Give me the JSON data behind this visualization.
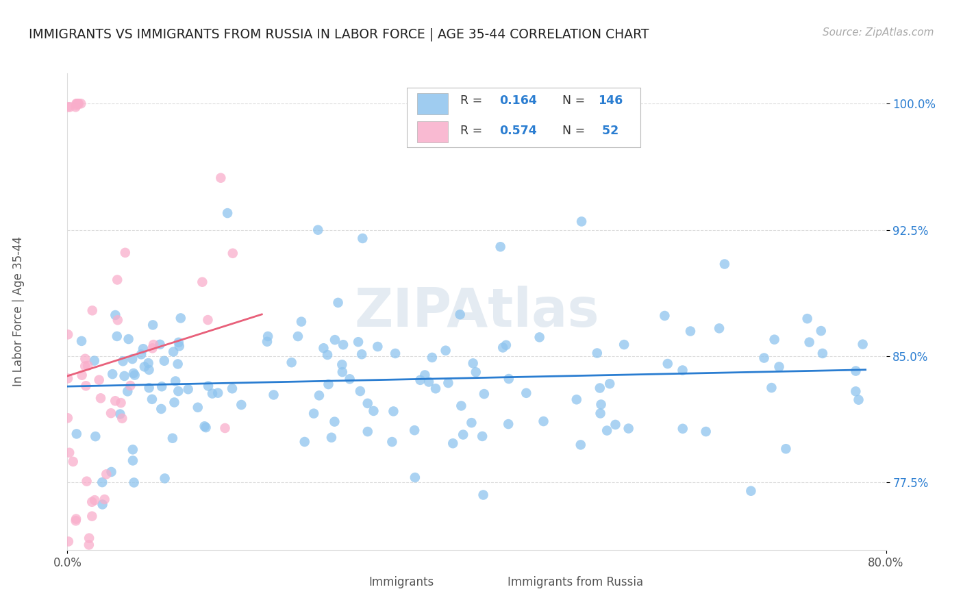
{
  "title": "IMMIGRANTS VS IMMIGRANTS FROM RUSSIA IN LABOR FORCE | AGE 35-44 CORRELATION CHART",
  "source": "Source: ZipAtlas.com",
  "ylabel": "In Labor Force | Age 35-44",
  "watermark": "ZIPAtlas",
  "xmin": 0.0,
  "xmax": 0.8,
  "ymin": 0.735,
  "ymax": 1.018,
  "yticks": [
    0.775,
    0.85,
    0.925,
    1.0
  ],
  "ytick_labels": [
    "77.5%",
    "85.0%",
    "92.5%",
    "100.0%"
  ],
  "blue_color": "#8EC4EE",
  "pink_color": "#F9AECB",
  "blue_line_color": "#2A7DD1",
  "pink_line_color": "#E8607A",
  "R_blue": 0.164,
  "N_blue": 146,
  "R_pink": 0.574,
  "N_pink": 52,
  "accent_color": "#2A7DD1",
  "title_color": "#222222",
  "grid_color": "#dddddd",
  "tick_color": "#555555"
}
